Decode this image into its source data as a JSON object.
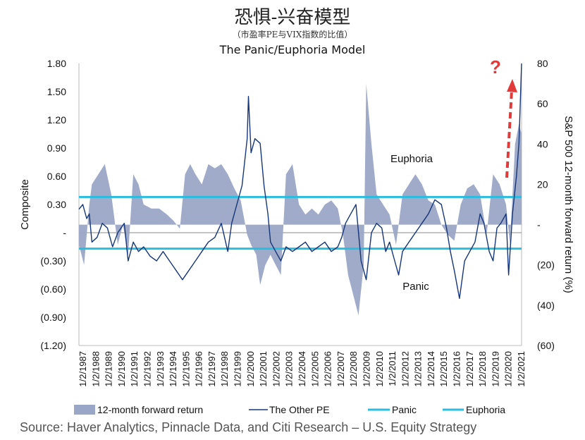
{
  "header": {
    "title_cn": "恐惧-兴奋模型",
    "subtitle_cn": "（市盈率PE与VIX指数的比值）"
  },
  "source": "Source: Haver Analytics, Pinnacle Data, and Citi Research – U.S. Equity Strategy",
  "colors": {
    "area": "#9aa6c6",
    "line": "#16367a",
    "threshold": "#2bbde0",
    "arrow": "#e23a3a"
  },
  "chart_data": {
    "type": "line",
    "title": "The Panic/Euphoria Model",
    "ylabel": "Composite",
    "y2label": "S&P 500 12-month forward return (%)",
    "ylim": [
      -1.2,
      1.8
    ],
    "y2lim": [
      -60,
      80
    ],
    "y_ticks": [
      "1.80",
      "1.50",
      "1.20",
      "0.90",
      "0.60",
      "0.30",
      "-",
      "(0.30)",
      "(0.60)",
      "(0.90)",
      "(1.20)"
    ],
    "y2_ticks": [
      "80",
      "60",
      "40",
      "20",
      "-",
      "(20)",
      "(40)",
      "(60)"
    ],
    "x_ticks": [
      "1/2/1987",
      "1/2/1988",
      "1/2/1989",
      "1/2/1990",
      "1/2/1991",
      "1/2/1992",
      "1/2/1993",
      "1/2/1994",
      "1/2/1995",
      "1/2/1996",
      "1/2/1997",
      "1/2/1998",
      "1/2/1999",
      "1/2/2000",
      "1/2/2001",
      "1/2/2002",
      "1/2/2003",
      "1/2/2004",
      "1/2/2005",
      "1/2/2006",
      "1/2/2007",
      "1/2/2008",
      "1/2/2009",
      "1/2/2010",
      "1/2/2011",
      "1/2/2012",
      "1/2/2013",
      "1/2/2014",
      "1/2/2015",
      "1/2/2016",
      "1/2/2017",
      "1/2/2018",
      "1/2/2019",
      "1/2/2020",
      "1/2/2021"
    ],
    "annotations": {
      "euphoria": "Euphoria",
      "panic": "Panic",
      "question": "?"
    },
    "legend": {
      "area": "12-month forward return",
      "line": "The Other PE",
      "panic": "Panic",
      "euphoria": "Euphoria"
    },
    "thresholds": {
      "euphoria": 0.38,
      "panic": -0.17
    },
    "series": [
      {
        "name": "The Other PE",
        "x": [
          1987.0,
          1987.3,
          1987.6,
          1987.8,
          1988.0,
          1988.4,
          1988.8,
          1989.2,
          1989.6,
          1990.0,
          1990.5,
          1990.8,
          1991.2,
          1991.6,
          1992.0,
          1992.5,
          1993.0,
          1993.5,
          1994.0,
          1994.5,
          1995.0,
          1995.5,
          1996.0,
          1996.5,
          1997.0,
          1997.5,
          1998.0,
          1998.5,
          1998.8,
          1999.2,
          1999.6,
          2000.0,
          2000.1,
          2000.3,
          2000.6,
          2001.0,
          2001.3,
          2001.6,
          2001.8,
          2002.2,
          2002.6,
          2003.0,
          2003.5,
          2004.0,
          2004.5,
          2005.0,
          2005.5,
          2006.0,
          2006.5,
          2007.0,
          2007.3,
          2007.6,
          2008.0,
          2008.4,
          2008.8,
          2009.2,
          2009.6,
          2010.0,
          2010.4,
          2010.7,
          2011.0,
          2011.4,
          2011.7,
          2012.0,
          2012.5,
          2013.0,
          2013.5,
          2014.0,
          2014.5,
          2015.0,
          2015.4,
          2015.7,
          2016.0,
          2016.4,
          2016.8,
          2017.2,
          2017.6,
          2018.0,
          2018.3,
          2018.7,
          2019.0,
          2019.3,
          2019.6,
          2020.0,
          2020.2,
          2020.5,
          2020.8,
          2021.0,
          2021.2
        ],
        "values": [
          0.25,
          0.3,
          0.15,
          0.2,
          -0.1,
          -0.05,
          0.1,
          0.05,
          -0.15,
          0.0,
          0.1,
          -0.3,
          -0.1,
          -0.2,
          -0.15,
          -0.25,
          -0.3,
          -0.2,
          -0.3,
          -0.4,
          -0.5,
          -0.4,
          -0.3,
          -0.2,
          -0.1,
          -0.05,
          0.1,
          -0.2,
          0.1,
          0.3,
          0.5,
          1.0,
          1.45,
          0.85,
          1.0,
          0.95,
          0.5,
          0.2,
          -0.1,
          -0.2,
          -0.3,
          -0.15,
          -0.2,
          -0.15,
          -0.1,
          -0.2,
          -0.15,
          -0.1,
          -0.2,
          -0.15,
          -0.05,
          0.1,
          0.2,
          0.3,
          -0.3,
          -0.5,
          0.0,
          0.1,
          0.05,
          -0.2,
          -0.1,
          -0.3,
          -0.45,
          -0.2,
          -0.1,
          0.0,
          0.1,
          0.2,
          0.35,
          0.3,
          0.05,
          -0.2,
          -0.4,
          -0.7,
          -0.3,
          -0.2,
          -0.1,
          0.2,
          0.1,
          -0.2,
          -0.3,
          0.05,
          0.1,
          0.2,
          -0.45,
          0.2,
          0.6,
          0.95,
          1.8
        ]
      },
      {
        "name": "12-month forward return",
        "x": [
          1987.0,
          1987.4,
          1987.8,
          1988.0,
          1988.5,
          1989.0,
          1989.5,
          1990.0,
          1990.4,
          1990.8,
          1991.2,
          1991.6,
          1992.0,
          1992.6,
          1993.2,
          1993.8,
          1994.3,
          1994.8,
          1995.2,
          1995.6,
          1996.0,
          1996.5,
          1997.0,
          1997.5,
          1998.0,
          1998.5,
          1999.0,
          1999.5,
          2000.0,
          2000.3,
          2000.7,
          2001.0,
          2001.4,
          2001.8,
          2002.2,
          2002.6,
          2003.0,
          2003.5,
          2004.0,
          2004.5,
          2005.0,
          2005.5,
          2006.0,
          2006.5,
          2007.0,
          2007.4,
          2007.8,
          2008.2,
          2008.6,
          2009.0,
          2009.2,
          2009.6,
          2010.0,
          2010.5,
          2011.0,
          2011.5,
          2012.0,
          2012.5,
          2013.0,
          2013.5,
          2014.0,
          2014.5,
          2015.0,
          2015.5,
          2016.0,
          2016.5,
          2017.0,
          2017.5,
          2018.0,
          2018.5,
          2019.0,
          2019.5,
          2020.0,
          2020.3,
          2020.7,
          2021.0,
          2021.2
        ],
        "values": [
          -10,
          -20,
          10,
          20,
          25,
          30,
          15,
          -10,
          0,
          -15,
          25,
          20,
          10,
          8,
          8,
          5,
          2,
          -2,
          25,
          30,
          25,
          20,
          30,
          28,
          30,
          25,
          18,
          12,
          -5,
          -10,
          -15,
          -30,
          -20,
          -15,
          -20,
          -25,
          25,
          30,
          10,
          5,
          8,
          5,
          10,
          12,
          8,
          -5,
          -25,
          -35,
          -45,
          -20,
          70,
          40,
          15,
          10,
          5,
          -10,
          15,
          20,
          25,
          20,
          12,
          10,
          0,
          -5,
          -8,
          10,
          18,
          20,
          15,
          -5,
          25,
          20,
          10,
          -10,
          40,
          50,
          45
        ]
      }
    ]
  }
}
